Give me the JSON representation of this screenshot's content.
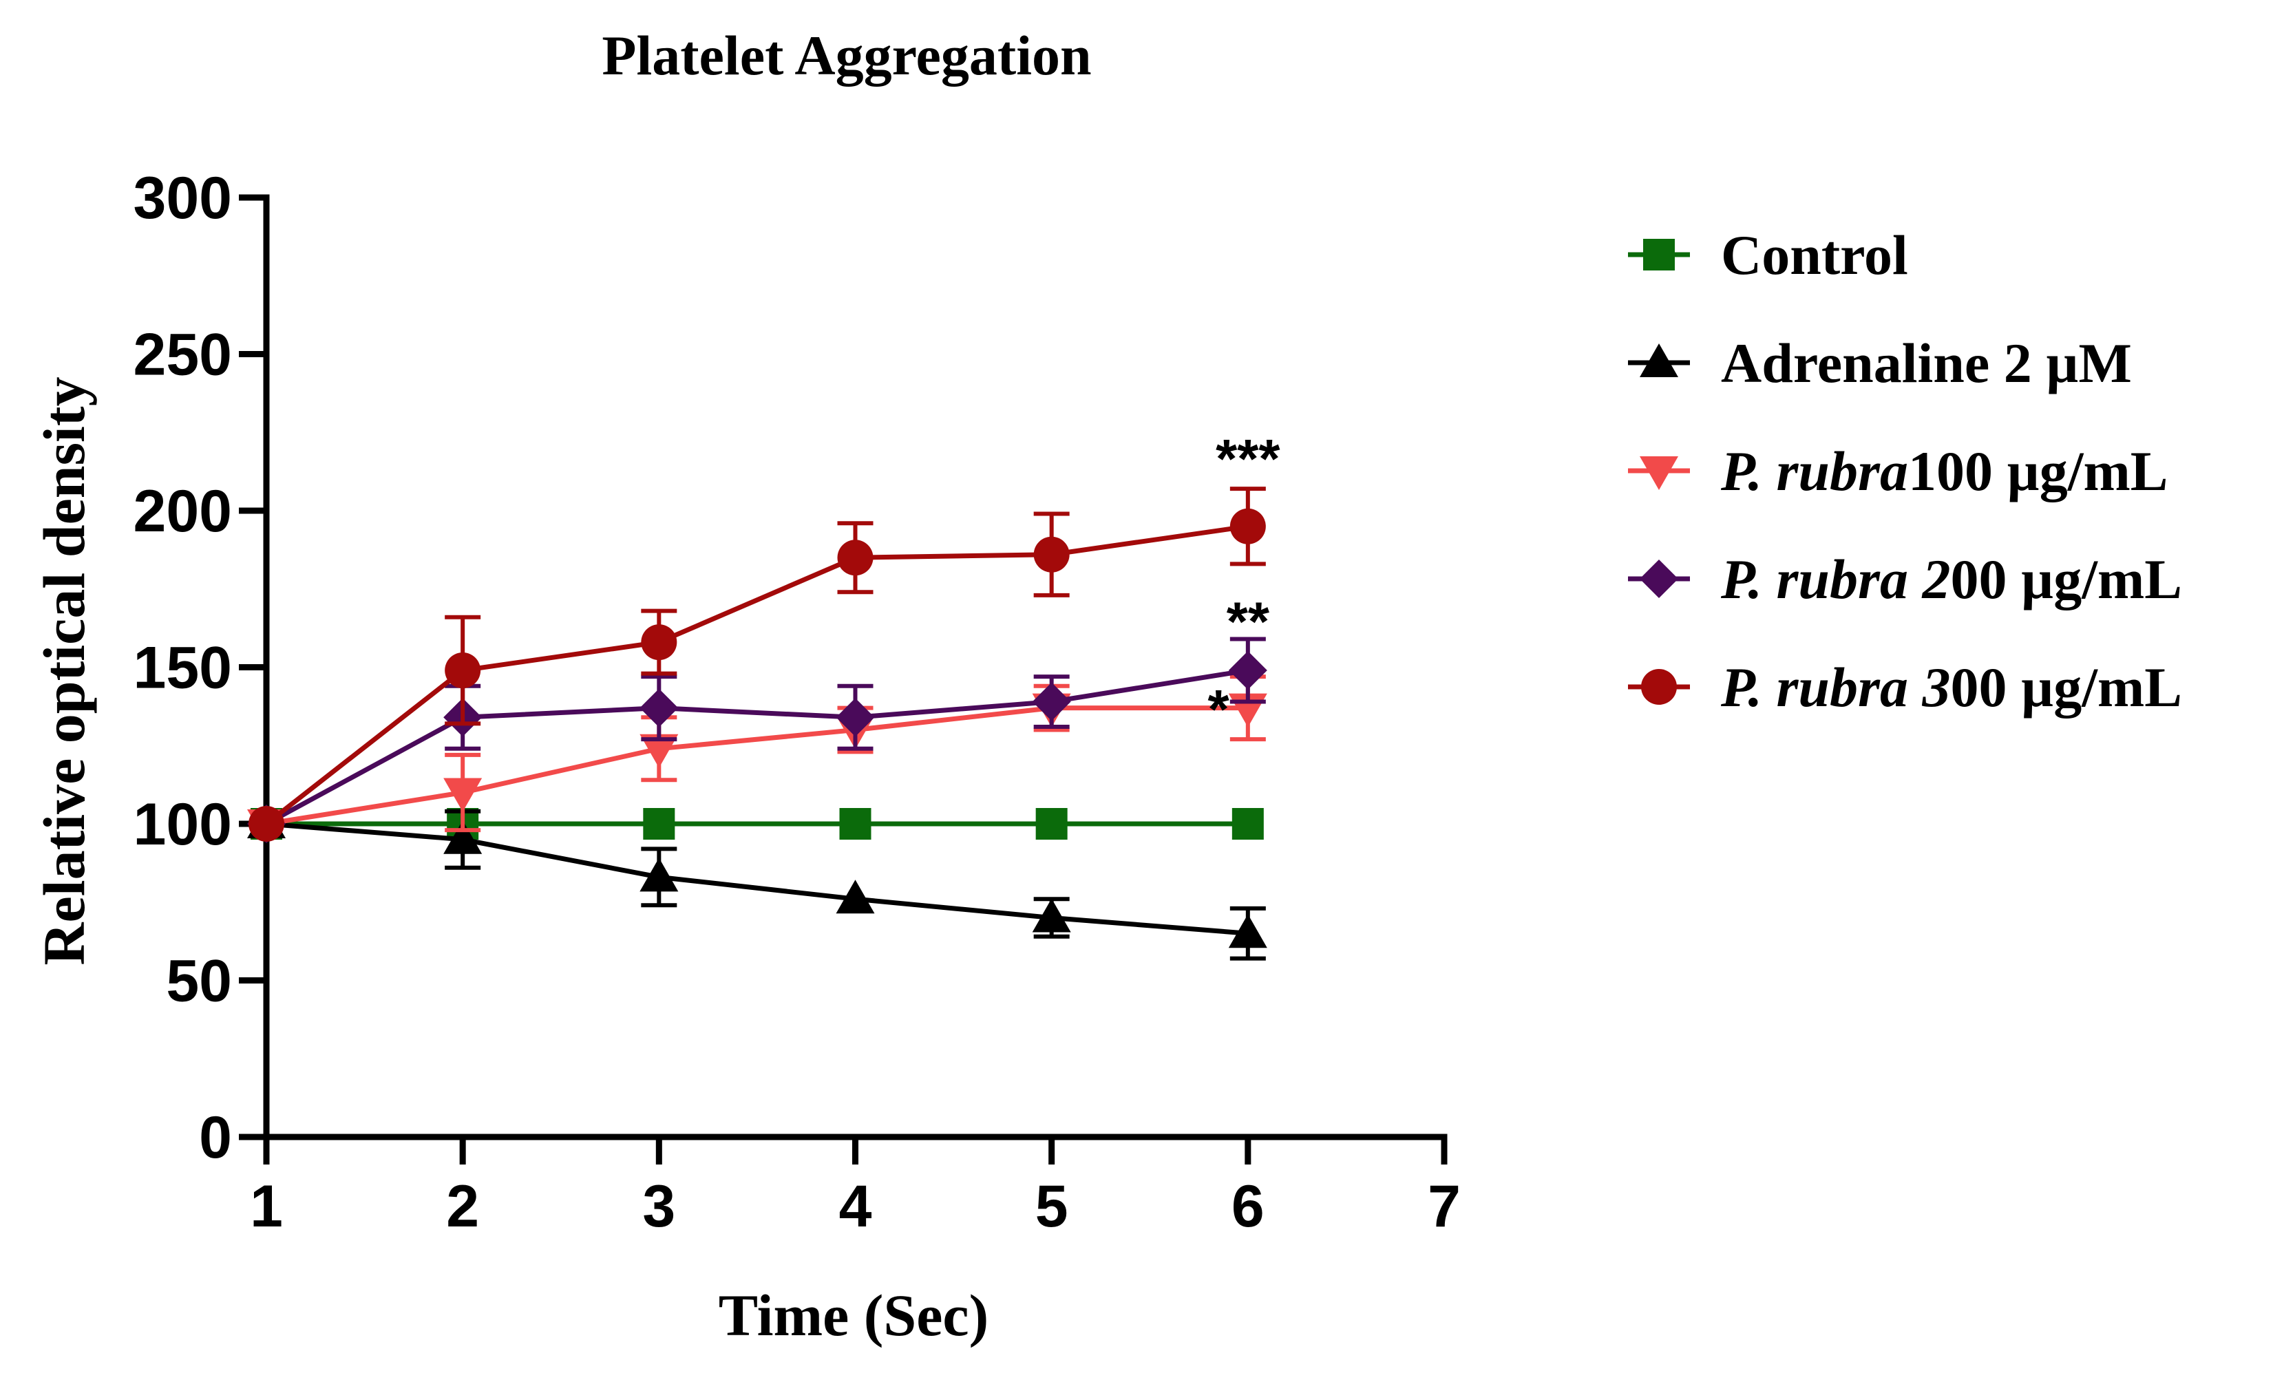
{
  "chart_data": {
    "type": "line",
    "title": "Platelet Aggregation",
    "xlabel": "Time (Sec)",
    "ylabel": "Relative optical density",
    "xlim": [
      1,
      7
    ],
    "ylim": [
      0,
      300
    ],
    "x_ticks": [
      "1",
      "2",
      "3",
      "4",
      "5",
      "6",
      "7"
    ],
    "y_ticks": [
      "0",
      "50",
      "100",
      "150",
      "200",
      "250",
      "300"
    ],
    "x": [
      1,
      2,
      3,
      4,
      5,
      6
    ],
    "series": [
      {
        "name": "Control",
        "legend_parts": [
          {
            "text": "Control",
            "italic": false
          }
        ],
        "color": "#0b6b0b",
        "marker": "square",
        "values": [
          100,
          100,
          100,
          100,
          100,
          100
        ],
        "errors": [
          0,
          0,
          0,
          0,
          0,
          0
        ]
      },
      {
        "name": "Adrenaline 2 µM",
        "legend_parts": [
          {
            "text": "Adrenaline 2 µM",
            "italic": false
          }
        ],
        "color": "#000000",
        "marker": "triangle-up",
        "values": [
          100,
          95,
          83,
          76,
          70,
          65
        ],
        "errors": [
          0,
          9,
          9,
          0,
          6,
          8
        ]
      },
      {
        "name": "P. rubra100 µg/mL",
        "legend_parts": [
          {
            "text": "P. rubra",
            "italic": true
          },
          {
            "text": "100 µg/mL",
            "italic": false
          }
        ],
        "color": "#f24a4a",
        "marker": "triangle-down",
        "values": [
          100,
          110,
          124,
          130,
          137,
          137
        ],
        "errors": [
          0,
          12,
          10,
          7,
          7,
          10
        ]
      },
      {
        "name": "P. rubra 200 µg/mL",
        "legend_parts": [
          {
            "text": "P. rubra 2",
            "italic": true
          },
          {
            "text": "00 µg/mL",
            "italic": false
          }
        ],
        "color": "#4a0a5a",
        "marker": "diamond",
        "values": [
          100,
          134,
          137,
          134,
          139,
          149
        ],
        "errors": [
          0,
          10,
          10,
          10,
          8,
          10
        ]
      },
      {
        "name": "P. rubra 300 µg/mL",
        "legend_parts": [
          {
            "text": "P. rubra 3",
            "italic": true
          },
          {
            "text": "00 µg/mL",
            "italic": false
          }
        ],
        "color": "#a30a0a",
        "marker": "circle",
        "values": [
          100,
          149,
          158,
          185,
          186,
          195
        ],
        "errors": [
          0,
          17,
          10,
          11,
          13,
          12
        ]
      }
    ],
    "annotations": [
      {
        "text": "***",
        "x": 6,
        "y": 215
      },
      {
        "text": "**",
        "x": 6,
        "y": 163
      },
      {
        "text": "*",
        "x": 5.85,
        "y": 135
      }
    ]
  }
}
